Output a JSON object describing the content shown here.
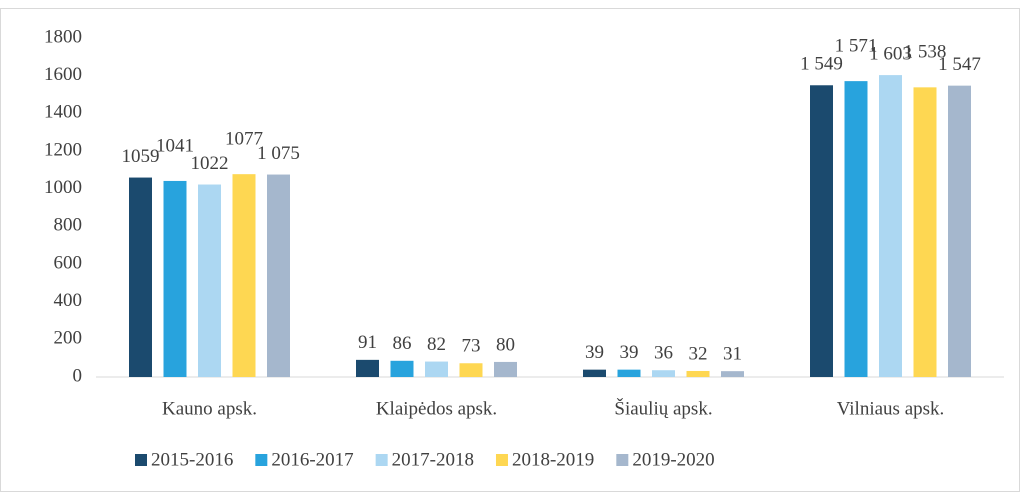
{
  "chart_data": {
    "type": "bar",
    "categories": [
      "Kauno apsk.",
      "Klaipėdos apsk.",
      "Šiaulių apsk.",
      "Vilniaus apsk."
    ],
    "series": [
      {
        "name": "2015-2016",
        "color": "#1b4a6e",
        "values": [
          1059,
          91,
          39,
          1549
        ],
        "value_labels": [
          "1059",
          "91",
          "39",
          "1 549"
        ]
      },
      {
        "name": "2016-2017",
        "color": "#28a3dd",
        "values": [
          1041,
          86,
          39,
          1571
        ],
        "value_labels": [
          "1041",
          "86",
          "39",
          "1 571"
        ]
      },
      {
        "name": "2017-2018",
        "color": "#acd7f2",
        "values": [
          1022,
          82,
          36,
          1603
        ],
        "value_labels": [
          "1022",
          "82",
          "36",
          "1 603"
        ]
      },
      {
        "name": "2018-2019",
        "color": "#fed752",
        "values": [
          1077,
          73,
          32,
          1538
        ],
        "value_labels": [
          "1077",
          "73",
          "32",
          "1 538"
        ]
      },
      {
        "name": "2019-2020",
        "color": "#a5b7cd",
        "values": [
          1075,
          80,
          31,
          1547
        ],
        "value_labels": [
          "1 075",
          "80",
          "31",
          "1 547"
        ]
      }
    ],
    "ylim": [
      0,
      1800
    ],
    "yticks": [
      0,
      200,
      400,
      600,
      800,
      1000,
      1200,
      1400,
      1600,
      1800
    ],
    "grid": false,
    "legend": "bottom"
  }
}
